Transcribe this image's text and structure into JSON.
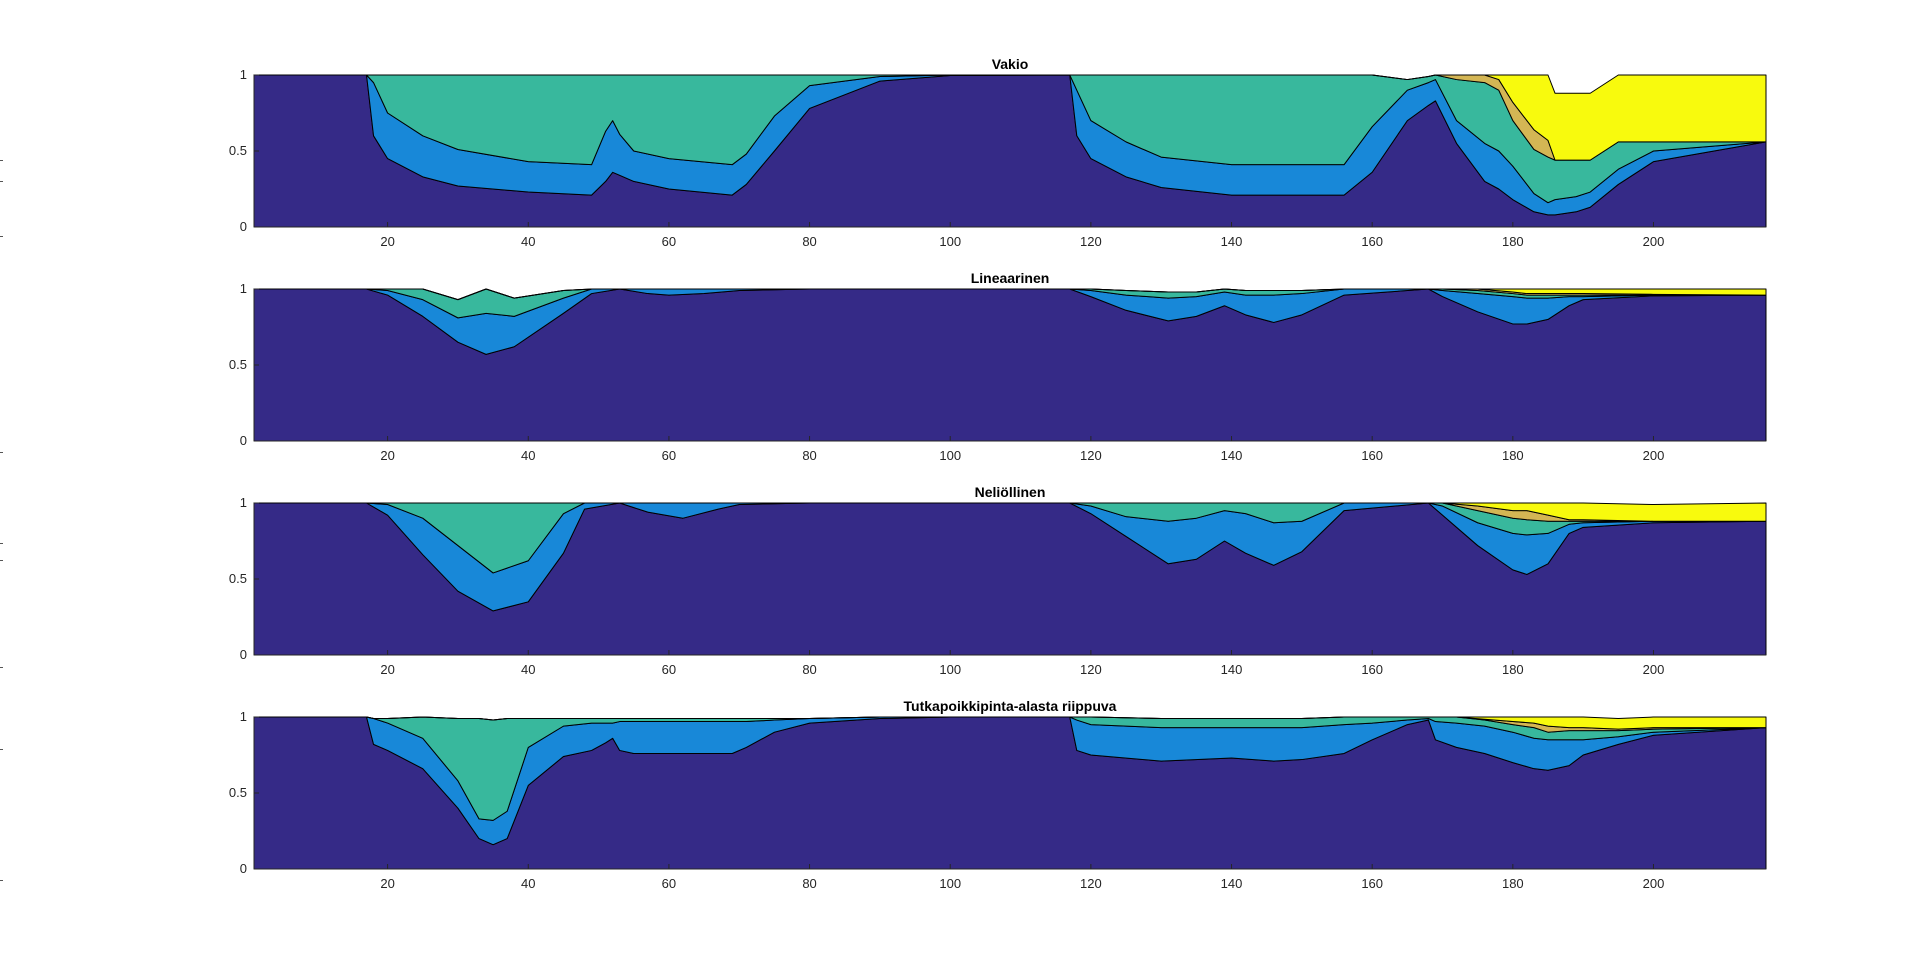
{
  "colors": {
    "layer1": "#352a87",
    "layer2": "#1888d8",
    "layer3": "#38b89d",
    "layer4": "#d4b654",
    "layer5": "#f8fa0d",
    "axis": "#262626"
  },
  "chart_data": [
    {
      "type": "area",
      "stacked": true,
      "title": "Vakio",
      "xlim": [
        1,
        216
      ],
      "ylim": [
        0,
        1
      ],
      "xticks": [
        20,
        40,
        60,
        80,
        100,
        120,
        140,
        160,
        180,
        200
      ],
      "yticks": [
        0,
        0.5,
        1
      ],
      "x": [
        1,
        17,
        18,
        20,
        25,
        30,
        40,
        49,
        51,
        52,
        53,
        55,
        60,
        69,
        71,
        75,
        80,
        90,
        100,
        117,
        118,
        120,
        125,
        130,
        140,
        150,
        156,
        160,
        165,
        168,
        169,
        172,
        176,
        178,
        180,
        183,
        185,
        186,
        189,
        191,
        195,
        200,
        216
      ],
      "series": [
        {
          "values": [
            1,
            1,
            0.6,
            0.45,
            0.33,
            0.27,
            0.23,
            0.21,
            0.3,
            0.36,
            0.34,
            0.3,
            0.25,
            0.21,
            0.28,
            0.5,
            0.78,
            0.96,
            0.997,
            1,
            0.6,
            0.45,
            0.33,
            0.26,
            0.21,
            0.21,
            0.21,
            0.36,
            0.7,
            0.8,
            0.83,
            0.55,
            0.3,
            0.25,
            0.18,
            0.1,
            0.08,
            0.08,
            0.1,
            0.13,
            0.28,
            0.43,
            0.56
          ]
        },
        {
          "values": [
            0,
            0,
            0.35,
            0.3,
            0.27,
            0.24,
            0.2,
            0.2,
            0.33,
            0.34,
            0.27,
            0.2,
            0.2,
            0.2,
            0.2,
            0.23,
            0.15,
            0.03,
            0.003,
            0,
            0.3,
            0.25,
            0.23,
            0.2,
            0.2,
            0.2,
            0.2,
            0.3,
            0.2,
            0.15,
            0.14,
            0.15,
            0.25,
            0.25,
            0.22,
            0.12,
            0.08,
            0.1,
            0.1,
            0.1,
            0.1,
            0.07,
            0
          ]
        },
        {
          "values": [
            0,
            0,
            0.05,
            0.25,
            0.4,
            0.49,
            0.57,
            0.59,
            0.37,
            0.3,
            0.39,
            0.5,
            0.55,
            0.59,
            0.52,
            0.27,
            0.07,
            0.01,
            0,
            0,
            0.1,
            0.3,
            0.44,
            0.54,
            0.59,
            0.59,
            0.59,
            0.34,
            0.07,
            0.04,
            0.03,
            0.27,
            0.4,
            0.4,
            0.3,
            0.29,
            0.3,
            0.26,
            0.24,
            0.21,
            0.18,
            0.06,
            0
          ]
        },
        {
          "values": [
            0,
            0,
            0,
            0,
            0,
            0,
            0,
            0,
            0,
            0,
            0,
            0,
            0,
            0,
            0,
            0,
            0,
            0,
            0,
            0,
            0,
            0,
            0,
            0,
            0,
            0,
            0,
            0,
            0,
            0,
            0,
            0.03,
            0.05,
            0.07,
            0.12,
            0.13,
            0.11,
            0,
            0,
            0,
            0,
            0,
            0
          ]
        },
        {
          "values": [
            0,
            0,
            0,
            0,
            0,
            0,
            0,
            0,
            0,
            0,
            0,
            0,
            0,
            0,
            0,
            0,
            0,
            0,
            0,
            0,
            0,
            0,
            0,
            0,
            0,
            0,
            0,
            0,
            0,
            0,
            0,
            0,
            0,
            0.03,
            0.18,
            0.36,
            0.43,
            0.44,
            0.44,
            0.44,
            0.44,
            0.44,
            0.44
          ]
        }
      ]
    },
    {
      "type": "area",
      "stacked": true,
      "title": "Lineaarinen",
      "xlim": [
        1,
        216
      ],
      "ylim": [
        0,
        1
      ],
      "xticks": [
        20,
        40,
        60,
        80,
        100,
        120,
        140,
        160,
        180,
        200
      ],
      "yticks": [
        0,
        0.5,
        1
      ],
      "x": [
        1,
        17,
        20,
        25,
        30,
        34,
        38,
        45,
        49,
        53,
        57,
        60,
        65,
        70,
        80,
        100,
        117,
        120,
        125,
        131,
        135,
        139,
        142,
        146,
        150,
        156,
        168,
        170,
        175,
        180,
        182,
        185,
        188,
        190,
        200,
        216
      ],
      "series": [
        {
          "values": [
            1,
            1,
            0.96,
            0.82,
            0.65,
            0.57,
            0.62,
            0.84,
            0.97,
            1,
            0.97,
            0.96,
            0.97,
            0.99,
            1,
            1,
            1,
            0.95,
            0.86,
            0.79,
            0.82,
            0.89,
            0.83,
            0.78,
            0.83,
            0.96,
            1,
            0.95,
            0.85,
            0.77,
            0.77,
            0.8,
            0.89,
            0.93,
            0.955,
            0.96
          ]
        },
        {
          "values": [
            0,
            0,
            0.03,
            0.11,
            0.16,
            0.27,
            0.2,
            0.1,
            0.03,
            0,
            0.03,
            0.04,
            0.03,
            0.01,
            0,
            0,
            0,
            0.04,
            0.1,
            0.15,
            0.13,
            0.09,
            0.13,
            0.18,
            0.14,
            0.04,
            0,
            0.04,
            0.12,
            0.18,
            0.17,
            0.14,
            0.06,
            0.02,
            0.005,
            0
          ]
        },
        {
          "values": [
            0,
            0,
            0.01,
            0.07,
            0.12,
            0.16,
            0.12,
            0.05,
            0,
            0,
            0,
            0,
            0,
            0,
            0,
            0,
            0,
            0.01,
            0.03,
            0.04,
            0.03,
            0.02,
            0.03,
            0.03,
            0.02,
            0,
            0,
            0.01,
            0.02,
            0.02,
            0.02,
            0.02,
            0.01,
            0.01,
            0,
            0
          ]
        },
        {
          "values": [
            0,
            0,
            0,
            0,
            0,
            0,
            0,
            0,
            0,
            0,
            0,
            0,
            0,
            0,
            0,
            0,
            0,
            0,
            0,
            0,
            0,
            0,
            0,
            0,
            0,
            0,
            0,
            0,
            0.01,
            0.01,
            0.01,
            0.01,
            0.01,
            0.01,
            0.005,
            0
          ]
        },
        {
          "values": [
            0,
            0,
            0,
            0,
            0,
            0,
            0,
            0,
            0,
            0,
            0,
            0,
            0,
            0,
            0,
            0,
            0,
            0,
            0,
            0,
            0,
            0,
            0,
            0,
            0,
            0,
            0,
            0,
            0.01,
            0.02,
            0.03,
            0.03,
            0.03,
            0.03,
            0.035,
            0.04
          ]
        }
      ]
    },
    {
      "type": "area",
      "stacked": true,
      "title": "Neliöllinen",
      "xlim": [
        1,
        216
      ],
      "ylim": [
        0,
        1
      ],
      "xticks": [
        20,
        40,
        60,
        80,
        100,
        120,
        140,
        160,
        180,
        200
      ],
      "yticks": [
        0,
        0.5,
        1
      ],
      "x": [
        1,
        17,
        20,
        25,
        30,
        35,
        40,
        45,
        48,
        53,
        57,
        62,
        67,
        70,
        80,
        100,
        117,
        120,
        125,
        131,
        135,
        139,
        142,
        146,
        150,
        156,
        168,
        170,
        175,
        180,
        182,
        185,
        188,
        190,
        200,
        216
      ],
      "series": [
        {
          "values": [
            1,
            1,
            0.92,
            0.66,
            0.42,
            0.29,
            0.35,
            0.67,
            0.96,
            1,
            0.94,
            0.9,
            0.96,
            0.99,
            1,
            1,
            1,
            0.93,
            0.78,
            0.6,
            0.63,
            0.75,
            0.67,
            0.59,
            0.68,
            0.95,
            1,
            0.92,
            0.72,
            0.56,
            0.53,
            0.6,
            0.8,
            0.84,
            0.87,
            0.88
          ]
        },
        {
          "values": [
            0,
            0,
            0.07,
            0.24,
            0.3,
            0.25,
            0.27,
            0.26,
            0.04,
            0,
            0.06,
            0.1,
            0.04,
            0.01,
            0,
            0,
            0,
            0.05,
            0.13,
            0.28,
            0.27,
            0.2,
            0.26,
            0.28,
            0.2,
            0.05,
            0,
            0.06,
            0.15,
            0.24,
            0.26,
            0.2,
            0.06,
            0.03,
            0.01,
            0
          ]
        },
        {
          "values": [
            0,
            0,
            0.01,
            0.1,
            0.28,
            0.46,
            0.38,
            0.07,
            0,
            0,
            0,
            0,
            0,
            0,
            0,
            0,
            0,
            0.02,
            0.09,
            0.12,
            0.1,
            0.05,
            0.07,
            0.13,
            0.12,
            0,
            0,
            0.02,
            0.08,
            0.1,
            0.1,
            0.08,
            0.02,
            0.01,
            0,
            0
          ]
        },
        {
          "values": [
            0,
            0,
            0,
            0,
            0,
            0,
            0,
            0,
            0,
            0,
            0,
            0,
            0,
            0,
            0,
            0,
            0,
            0,
            0,
            0,
            0,
            0,
            0,
            0,
            0,
            0,
            0,
            0,
            0.03,
            0.05,
            0.06,
            0.04,
            0.01,
            0.01,
            0,
            0
          ]
        },
        {
          "values": [
            0,
            0,
            0,
            0,
            0,
            0,
            0,
            0,
            0,
            0,
            0,
            0,
            0,
            0,
            0,
            0,
            0,
            0,
            0,
            0,
            0,
            0,
            0,
            0,
            0,
            0,
            0,
            0,
            0.02,
            0.05,
            0.05,
            0.08,
            0.11,
            0.11,
            0.11,
            0.12
          ]
        }
      ]
    },
    {
      "type": "area",
      "stacked": true,
      "title": "Tutkapoikkipinta-alasta riippuva",
      "xlim": [
        1,
        216
      ],
      "ylim": [
        0,
        1
      ],
      "xticks": [
        20,
        40,
        60,
        80,
        100,
        120,
        140,
        160,
        180,
        200
      ],
      "yticks": [
        0,
        0.5,
        1
      ],
      "x": [
        1,
        17,
        18,
        20,
        25,
        30,
        33,
        35,
        37,
        40,
        45,
        49,
        51,
        52,
        53,
        55,
        60,
        69,
        71,
        75,
        80,
        90,
        100,
        117,
        118,
        120,
        130,
        140,
        146,
        150,
        156,
        160,
        165,
        168,
        169,
        172,
        176,
        180,
        183,
        185,
        188,
        190,
        195,
        200,
        216
      ],
      "series": [
        {
          "values": [
            1,
            1,
            0.82,
            0.78,
            0.66,
            0.4,
            0.2,
            0.16,
            0.2,
            0.55,
            0.74,
            0.78,
            0.83,
            0.86,
            0.78,
            0.76,
            0.76,
            0.76,
            0.8,
            0.9,
            0.96,
            0.99,
            1,
            1,
            0.78,
            0.75,
            0.71,
            0.73,
            0.71,
            0.72,
            0.76,
            0.85,
            0.95,
            0.98,
            0.85,
            0.8,
            0.76,
            0.7,
            0.66,
            0.65,
            0.68,
            0.75,
            0.82,
            0.88,
            0.93
          ]
        },
        {
          "values": [
            0,
            0,
            0.17,
            0.18,
            0.2,
            0.18,
            0.13,
            0.16,
            0.18,
            0.25,
            0.2,
            0.18,
            0.13,
            0.1,
            0.19,
            0.21,
            0.21,
            0.21,
            0.17,
            0.08,
            0.03,
            0.01,
            0,
            0,
            0.2,
            0.2,
            0.22,
            0.2,
            0.22,
            0.21,
            0.19,
            0.11,
            0.03,
            0.01,
            0.12,
            0.16,
            0.18,
            0.2,
            0.2,
            0.2,
            0.17,
            0.1,
            0.05,
            0.02,
            0
          ]
        },
        {
          "values": [
            0,
            0,
            0,
            0.03,
            0.14,
            0.41,
            0.66,
            0.66,
            0.61,
            0.19,
            0.05,
            0.03,
            0.03,
            0.03,
            0.02,
            0.02,
            0.02,
            0.02,
            0.02,
            0.01,
            0,
            0,
            0,
            0,
            0.02,
            0.05,
            0.06,
            0.06,
            0.06,
            0.06,
            0.05,
            0.04,
            0.02,
            0.01,
            0.03,
            0.04,
            0.04,
            0.05,
            0.07,
            0.05,
            0.06,
            0.06,
            0.04,
            0.02,
            0
          ]
        },
        {
          "values": [
            0,
            0,
            0,
            0,
            0,
            0,
            0,
            0,
            0,
            0,
            0,
            0,
            0,
            0,
            0,
            0,
            0,
            0,
            0,
            0,
            0,
            0,
            0,
            0,
            0,
            0,
            0,
            0,
            0,
            0,
            0,
            0,
            0,
            0,
            0,
            0,
            0.005,
            0.02,
            0.03,
            0.04,
            0.02,
            0.02,
            0.01,
            0.01,
            0
          ]
        },
        {
          "values": [
            0,
            0,
            0,
            0,
            0,
            0,
            0,
            0,
            0,
            0,
            0,
            0,
            0,
            0,
            0,
            0,
            0,
            0,
            0,
            0,
            0,
            0,
            0,
            0,
            0,
            0,
            0,
            0,
            0,
            0,
            0,
            0,
            0,
            0,
            0,
            0,
            0.015,
            0.03,
            0.04,
            0.06,
            0.07,
            0.07,
            0.07,
            0.07,
            0.07
          ]
        }
      ]
    }
  ]
}
